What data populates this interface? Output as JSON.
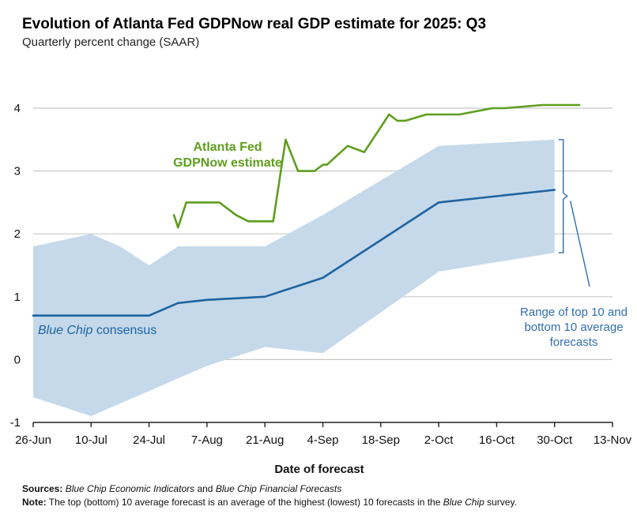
{
  "title": "Evolution of Atlanta Fed GDPNow real GDP estimate for 2025: Q3",
  "subtitle": "Quarterly percent change (SAAR)",
  "colors": {
    "gdpnow": "#5e9e1d",
    "consensus": "#1e63a0",
    "band": "#c5d9ea",
    "grid": "#c8c8c8",
    "annotation": "#2f6fb0"
  },
  "chart_data": {
    "type": "line",
    "xlabel": "Date of forecast",
    "ylabel": "",
    "ylim": [
      -1,
      4
    ],
    "yticks": [
      "-1",
      "0",
      "1",
      "2",
      "3",
      "4"
    ],
    "grid": true,
    "x_axis": {
      "unit": "days since 26-Jun",
      "range": [
        0,
        140
      ],
      "ticks": [
        {
          "label": "26-Jun",
          "day": 0
        },
        {
          "label": "10-Jul",
          "day": 14
        },
        {
          "label": "24-Jul",
          "day": 28
        },
        {
          "label": "7-Aug",
          "day": 42
        },
        {
          "label": "21-Aug",
          "day": 56
        },
        {
          "label": "4-Sep",
          "day": 70
        },
        {
          "label": "18-Sep",
          "day": 84
        },
        {
          "label": "2-Oct",
          "day": 98
        },
        {
          "label": "16-Oct",
          "day": 112
        },
        {
          "label": "30-Oct",
          "day": 126
        },
        {
          "label": "13-Nov",
          "day": 140
        }
      ]
    },
    "series": [
      {
        "name": "Atlanta Fed GDPNow estimate",
        "label_lines": [
          "Atlanta Fed",
          "GDPNow estimate"
        ],
        "x": [
          34,
          35,
          37,
          45,
          49,
          52,
          58,
          61,
          64,
          68,
          70,
          71,
          76,
          80,
          81,
          86,
          88,
          90,
          95,
          97,
          103,
          111,
          114,
          123,
          127,
          132
        ],
        "y": [
          2.3,
          2.1,
          2.5,
          2.5,
          2.3,
          2.2,
          2.2,
          3.5,
          3.0,
          3.0,
          3.1,
          3.1,
          3.4,
          3.3,
          3.4,
          3.9,
          3.8,
          3.8,
          3.9,
          3.9,
          3.9,
          4.0,
          4.0,
          4.05,
          4.05,
          4.05
        ]
      },
      {
        "name": "Blue Chip consensus",
        "label_italic": "Blue Chip",
        "label_rest": " consensus",
        "x": [
          0,
          14,
          21,
          28,
          35,
          42,
          56,
          70,
          98,
          126
        ],
        "y": [
          0.7,
          0.7,
          0.7,
          0.7,
          0.9,
          0.95,
          1.0,
          1.3,
          2.5,
          2.7
        ]
      }
    ],
    "band": {
      "name": "Range of top 10 and bottom 10 average forecasts",
      "label_lines": [
        "Range of top 10 and",
        "bottom 10 average",
        "forecasts"
      ],
      "x": [
        0,
        14,
        21,
        28,
        35,
        42,
        56,
        70,
        98,
        126
      ],
      "upper": [
        1.8,
        2.0,
        1.8,
        1.5,
        1.8,
        1.8,
        1.8,
        2.3,
        3.4,
        3.5
      ],
      "lower": [
        -0.6,
        -0.9,
        -0.7,
        -0.5,
        -0.3,
        -0.1,
        0.2,
        0.1,
        1.4,
        1.7
      ]
    }
  },
  "footnotes": {
    "sources_label": "Sources:",
    "sources_italic_1": "Blue Chip Economic Indicators",
    "sources_mid": " and ",
    "sources_italic_2": "Blue Chip Financial Forecasts",
    "note_label": "Note:",
    "note_text": " The top (bottom) 10 average forecast is an average of the highest (lowest) 10 forecasts in the ",
    "note_italic": "Blue Chip",
    "note_end": " survey."
  }
}
